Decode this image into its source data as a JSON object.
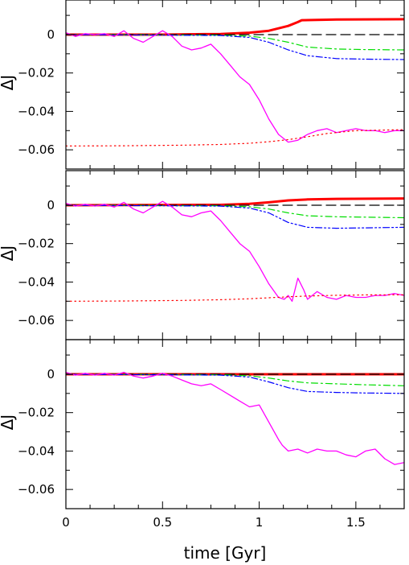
{
  "chart_data": [
    {
      "type": "line",
      "panel": 1,
      "xlabel": "",
      "ylabel": "ΔJ",
      "xlim": [
        0,
        1.75
      ],
      "ylim": [
        -0.07,
        0.018
      ],
      "yticks": [
        0,
        -0.02,
        -0.04,
        -0.06
      ],
      "ytick_labels": [
        "0",
        "−0.02",
        "−0.04",
        "−0.06"
      ],
      "xticks": [
        0,
        0.5,
        1,
        1.5
      ],
      "grid": false,
      "series": [
        {
          "color": "#ff0000",
          "style": "thick",
          "x": [
            0,
            0.5,
            0.8,
            0.95,
            1.05,
            1.15,
            1.2,
            1.22,
            1.4,
            1.75
          ],
          "y": [
            0,
            0,
            0.0003,
            0.001,
            0.002,
            0.0045,
            0.0065,
            0.0075,
            0.0078,
            0.008
          ]
        },
        {
          "color": "#000000",
          "style": "dashed",
          "x": [
            0,
            1.75
          ],
          "y": [
            0,
            0
          ]
        },
        {
          "color": "#00dd00",
          "style": "dashdot",
          "x": [
            0,
            0.8,
            0.95,
            1.05,
            1.15,
            1.25,
            1.4,
            1.55,
            1.75
          ],
          "y": [
            0,
            -0.0003,
            -0.0008,
            -0.002,
            -0.004,
            -0.0065,
            -0.0075,
            -0.0078,
            -0.008
          ]
        },
        {
          "color": "#0000ff",
          "style": "dashdotdot",
          "x": [
            0,
            0.8,
            0.95,
            1.05,
            1.15,
            1.25,
            1.4,
            1.55,
            1.75
          ],
          "y": [
            0,
            -0.0005,
            -0.0015,
            -0.004,
            -0.008,
            -0.011,
            -0.0125,
            -0.0128,
            -0.013
          ]
        },
        {
          "color": "#ff00ff",
          "style": "solid",
          "x": [
            0,
            0.05,
            0.1,
            0.15,
            0.2,
            0.25,
            0.3,
            0.35,
            0.4,
            0.45,
            0.5,
            0.55,
            0.6,
            0.65,
            0.7,
            0.75,
            0.8,
            0.85,
            0.9,
            0.95,
            1.0,
            1.05,
            1.1,
            1.15,
            1.2,
            1.25,
            1.3,
            1.35,
            1.4,
            1.45,
            1.5,
            1.55,
            1.6,
            1.65,
            1.7,
            1.75
          ],
          "y": [
            0.001,
            -0.001,
            0.0005,
            0.0,
            0.0005,
            -0.001,
            0.002,
            -0.002,
            -0.004,
            -0.001,
            0.002,
            -0.001,
            -0.006,
            -0.008,
            -0.007,
            -0.005,
            -0.01,
            -0.016,
            -0.022,
            -0.026,
            -0.034,
            -0.044,
            -0.052,
            -0.056,
            -0.055,
            -0.052,
            -0.05,
            -0.049,
            -0.051,
            -0.05,
            -0.049,
            -0.05,
            -0.05,
            -0.051,
            -0.05,
            -0.05
          ]
        },
        {
          "color": "#ff0000",
          "style": "dotted",
          "x": [
            0,
            0.3,
            0.6,
            0.8,
            0.95,
            1.05,
            1.15,
            1.25,
            1.35,
            1.5,
            1.75
          ],
          "y": [
            -0.058,
            -0.0579,
            -0.0576,
            -0.0572,
            -0.0566,
            -0.0558,
            -0.0547,
            -0.0532,
            -0.0515,
            -0.05,
            -0.0495
          ]
        }
      ]
    },
    {
      "type": "line",
      "panel": 2,
      "xlabel": "",
      "ylabel": "ΔJ",
      "xlim": [
        0,
        1.75
      ],
      "ylim": [
        -0.07,
        0.018
      ],
      "yticks": [
        0,
        -0.02,
        -0.04,
        -0.06
      ],
      "ytick_labels": [
        "0",
        "−0.02",
        "−0.04",
        "−0.06"
      ],
      "xticks": [
        0,
        0.5,
        1,
        1.5
      ],
      "grid": false,
      "series": [
        {
          "color": "#ff0000",
          "style": "thick",
          "x": [
            0,
            0.8,
            0.95,
            1.05,
            1.15,
            1.25,
            1.4,
            1.75
          ],
          "y": [
            0,
            0.0002,
            0.0007,
            0.0015,
            0.0025,
            0.003,
            0.0033,
            0.0035
          ]
        },
        {
          "color": "#000000",
          "style": "dashed",
          "x": [
            0,
            1.75
          ],
          "y": [
            0,
            0
          ]
        },
        {
          "color": "#00dd00",
          "style": "dashdot",
          "x": [
            0,
            0.8,
            0.95,
            1.05,
            1.15,
            1.25,
            1.4,
            1.55,
            1.75
          ],
          "y": [
            0,
            -0.0003,
            -0.0008,
            -0.002,
            -0.004,
            -0.0055,
            -0.006,
            -0.0062,
            -0.0065
          ]
        },
        {
          "color": "#0000ff",
          "style": "dashdotdot",
          "x": [
            0,
            0.8,
            0.95,
            1.05,
            1.15,
            1.25,
            1.4,
            1.55,
            1.75
          ],
          "y": [
            0,
            -0.0005,
            -0.0015,
            -0.004,
            -0.009,
            -0.0115,
            -0.012,
            -0.0118,
            -0.0115
          ]
        },
        {
          "color": "#ff00ff",
          "style": "solid",
          "x": [
            0,
            0.05,
            0.1,
            0.15,
            0.2,
            0.25,
            0.3,
            0.35,
            0.4,
            0.45,
            0.5,
            0.55,
            0.6,
            0.65,
            0.7,
            0.75,
            0.8,
            0.85,
            0.9,
            0.95,
            1.0,
            1.05,
            1.1,
            1.13,
            1.15,
            1.17,
            1.2,
            1.23,
            1.25,
            1.3,
            1.35,
            1.4,
            1.45,
            1.5,
            1.55,
            1.6,
            1.65,
            1.7,
            1.75
          ],
          "y": [
            0.001,
            -0.0005,
            0.0005,
            -0.0005,
            0.0005,
            -0.001,
            0.0015,
            -0.002,
            -0.004,
            -0.001,
            0.002,
            -0.001,
            -0.005,
            -0.006,
            -0.004,
            -0.003,
            -0.008,
            -0.014,
            -0.02,
            -0.024,
            -0.032,
            -0.041,
            -0.048,
            -0.049,
            -0.047,
            -0.05,
            -0.038,
            -0.044,
            -0.049,
            -0.045,
            -0.048,
            -0.049,
            -0.047,
            -0.048,
            -0.048,
            -0.047,
            -0.047,
            -0.046,
            -0.047
          ]
        },
        {
          "color": "#ff0000",
          "style": "dotted",
          "x": [
            0,
            0.3,
            0.6,
            0.8,
            0.95,
            1.05,
            1.15,
            1.25,
            1.4,
            1.55,
            1.75
          ],
          "y": [
            -0.05,
            -0.0499,
            -0.0496,
            -0.0492,
            -0.0487,
            -0.0482,
            -0.0477,
            -0.0473,
            -0.0469,
            -0.0467,
            -0.0466
          ]
        }
      ]
    },
    {
      "type": "line",
      "panel": 3,
      "xlabel": "time [Gyr]",
      "ylabel": "ΔJ",
      "xlim": [
        0,
        1.75
      ],
      "ylim": [
        -0.07,
        0.018
      ],
      "yticks": [
        0,
        -0.02,
        -0.04,
        -0.06
      ],
      "ytick_labels": [
        "0",
        "−0.02",
        "−0.04",
        "−0.06"
      ],
      "xticks": [
        0,
        0.5,
        1,
        1.5
      ],
      "xtick_labels": [
        "0",
        "0.5",
        "1",
        "1.5"
      ],
      "grid": false,
      "series": [
        {
          "color": "#ff0000",
          "style": "thick",
          "x": [
            0,
            1.75
          ],
          "y": [
            0,
            0
          ]
        },
        {
          "color": "#000000",
          "style": "dashed",
          "x": [
            0,
            1.75
          ],
          "y": [
            0,
            0
          ]
        },
        {
          "color": "#00dd00",
          "style": "dashdot",
          "x": [
            0,
            0.8,
            0.95,
            1.05,
            1.15,
            1.25,
            1.4,
            1.55,
            1.75
          ],
          "y": [
            0,
            -0.0003,
            -0.0008,
            -0.002,
            -0.0035,
            -0.0045,
            -0.005,
            -0.0055,
            -0.006
          ]
        },
        {
          "color": "#0000ff",
          "style": "dashdotdot",
          "x": [
            0,
            0.8,
            0.95,
            1.05,
            1.15,
            1.25,
            1.4,
            1.55,
            1.75
          ],
          "y": [
            0,
            -0.0005,
            -0.0015,
            -0.004,
            -0.007,
            -0.009,
            -0.0095,
            -0.0098,
            -0.01
          ]
        },
        {
          "color": "#ff00ff",
          "style": "solid",
          "x": [
            0,
            0.05,
            0.1,
            0.15,
            0.2,
            0.25,
            0.3,
            0.35,
            0.4,
            0.45,
            0.5,
            0.55,
            0.6,
            0.65,
            0.7,
            0.75,
            0.8,
            0.85,
            0.9,
            0.95,
            1.0,
            1.05,
            1.1,
            1.12,
            1.15,
            1.2,
            1.25,
            1.3,
            1.35,
            1.4,
            1.45,
            1.5,
            1.55,
            1.6,
            1.65,
            1.7,
            1.75
          ],
          "y": [
            0.001,
            -0.0005,
            0.0005,
            -0.0005,
            0.0005,
            -0.0005,
            0.001,
            -0.001,
            -0.002,
            -0.001,
            0.0005,
            -0.001,
            -0.003,
            -0.005,
            -0.006,
            -0.005,
            -0.008,
            -0.011,
            -0.014,
            -0.017,
            -0.016,
            -0.025,
            -0.034,
            -0.037,
            -0.04,
            -0.039,
            -0.041,
            -0.039,
            -0.04,
            -0.04,
            -0.042,
            -0.043,
            -0.04,
            -0.039,
            -0.044,
            -0.047,
            -0.046
          ]
        }
      ]
    }
  ]
}
